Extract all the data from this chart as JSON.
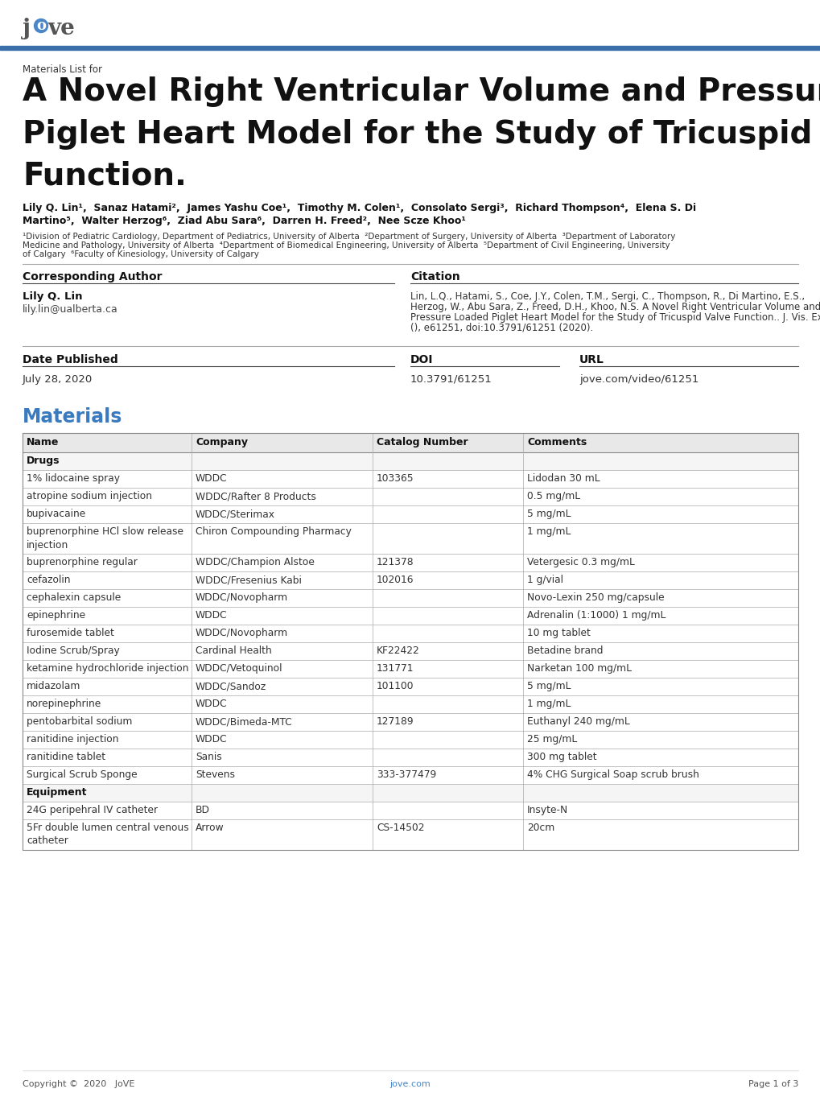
{
  "title_small": "Materials List for",
  "title_line1": "A Novel Right Ventricular Volume and Pressure Loaded",
  "title_line2": "Piglet Heart Model for the Study of Tricuspid Valve",
  "title_line3": "Function.",
  "authors_line1": "Lily Q. Lin¹,  Sanaz Hatami²,  James Yashu Coe¹,  Timothy M. Colen¹,  Consolato Sergi³,  Richard Thompson⁴,  Elena S. Di",
  "authors_line2": "Martino⁵,  Walter Herzog⁶,  Ziad Abu Sara⁶,  Darren H. Freed²,  Nee Scze Khoo¹",
  "affiliations_line1": "¹Division of Pediatric Cardiology, Department of Pediatrics, University of Alberta  ²Department of Surgery, University of Alberta  ³Department of Laboratory",
  "affiliations_line2": "Medicine and Pathology, University of Alberta  ⁴Department of Biomedical Engineering, University of Alberta  ⁵Department of Civil Engineering, University",
  "affiliations_line3": "of Calgary  ⁶Faculty of Kinesiology, University of Calgary",
  "corr_author_label": "Corresponding Author",
  "corr_author_name": "Lily Q. Lin",
  "corr_author_email": "lily.lin@ualberta.ca",
  "citation_label": "Citation",
  "citation_line1": "Lin, L.Q., Hatami, S., Coe, J.Y., Colen, T.M., Sergi, C., Thompson, R., Di Martino, E.S.,",
  "citation_line2": "Herzog, W., Abu Sara, Z., Freed, D.H., Khoo, N.S. A Novel Right Ventricular Volume and",
  "citation_line3": "Pressure Loaded Piglet Heart Model for the Study of Tricuspid Valve Function.. J. Vis. Exp.",
  "citation_line4": "(), e61251, doi:10.3791/61251 (2020).",
  "date_label": "Date Published",
  "date_value": "July 28, 2020",
  "doi_label": "DOI",
  "doi_value": "10.3791/61251",
  "url_label": "URL",
  "url_value": "jove.com/video/61251",
  "materials_label": "Materials",
  "table_headers": [
    "Name",
    "Company",
    "Catalog Number",
    "Comments"
  ],
  "table_data": [
    [
      "Drugs",
      "",
      "",
      ""
    ],
    [
      "1% lidocaine spray",
      "WDDC",
      "103365",
      "Lidodan 30 mL"
    ],
    [
      "atropine sodium injection",
      "WDDC/Rafter 8 Products",
      "",
      "0.5 mg/mL"
    ],
    [
      "bupivacaine",
      "WDDC/Sterimax",
      "",
      "5 mg/mL"
    ],
    [
      "buprenorphine HCl slow release\ninjection",
      "Chiron Compounding Pharmacy",
      "",
      "1 mg/mL"
    ],
    [
      "buprenorphine regular",
      "WDDC/Champion Alstoe",
      "121378",
      "Vetergesic 0.3 mg/mL"
    ],
    [
      "cefazolin",
      "WDDC/Fresenius Kabi",
      "102016",
      "1 g/vial"
    ],
    [
      "cephalexin capsule",
      "WDDC/Novopharm",
      "",
      "Novo-Lexin 250 mg/capsule"
    ],
    [
      "epinephrine",
      "WDDC",
      "",
      "Adrenalin (1:1000) 1 mg/mL"
    ],
    [
      "furosemide tablet",
      "WDDC/Novopharm",
      "",
      "10 mg tablet"
    ],
    [
      "Iodine Scrub/Spray",
      "Cardinal Health",
      "KF22422",
      "Betadine brand"
    ],
    [
      "ketamine hydrochloride injection",
      "WDDC/Vetoquinol",
      "131771",
      "Narketan 100 mg/mL"
    ],
    [
      "midazolam",
      "WDDC/Sandoz",
      "101100",
      "5 mg/mL"
    ],
    [
      "norepinephrine",
      "WDDC",
      "",
      "1 mg/mL"
    ],
    [
      "pentobarbital sodium",
      "WDDC/Bimeda-MTC",
      "127189",
      "Euthanyl 240 mg/mL"
    ],
    [
      "ranitidine injection",
      "WDDC",
      "",
      "25 mg/mL"
    ],
    [
      "ranitidine tablet",
      "Sanis",
      "",
      "300 mg tablet"
    ],
    [
      "Surgical Scrub Sponge",
      "Stevens",
      "333-377479",
      "4% CHG Surgical Soap scrub brush"
    ],
    [
      "Equipment",
      "",
      "",
      ""
    ],
    [
      "24G peripehral IV catheter",
      "BD",
      "",
      "Insyte-N"
    ],
    [
      "5Fr double lumen central venous\ncatheter",
      "Arrow",
      "CS-14502",
      "20cm"
    ]
  ],
  "footer_left": "Copyright ©  2020   JoVE",
  "footer_center": "jove.com",
  "footer_right": "Page 1 of 3",
  "jove_color": "#4a86c8",
  "header_line_color": "#3a6faa",
  "materials_color": "#3a7abf"
}
